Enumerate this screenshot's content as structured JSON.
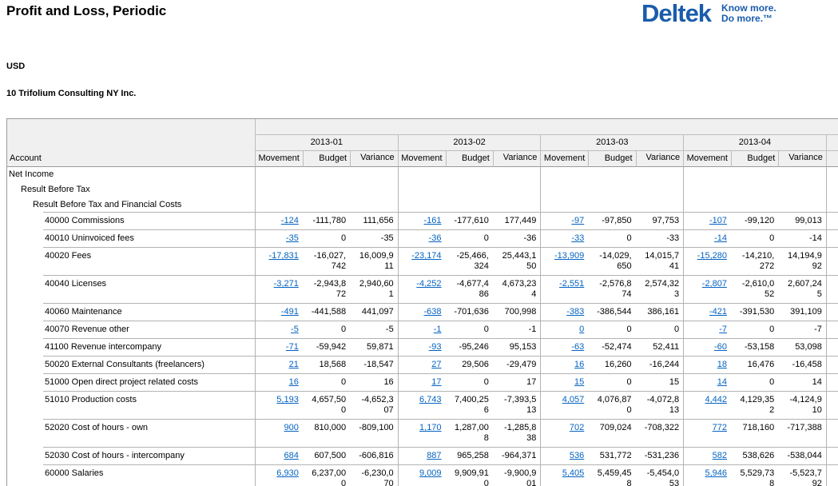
{
  "page": {
    "title": "Profit and Loss, Periodic",
    "currency_label": "USD",
    "company_label": "10 Trifolium Consulting NY Inc."
  },
  "logo": {
    "brand": "Deltek",
    "tagline_line1": "Know more.",
    "tagline_line2": "Do more.™"
  },
  "colors": {
    "brand_blue": "#1a5cab",
    "link_blue": "#0563c1",
    "header_bg": "#f0f0f0",
    "border_gray": "#b3b3b3"
  },
  "table": {
    "account_header": "Account",
    "periods": [
      "2013-01",
      "2013-02",
      "2013-03",
      "2013-04"
    ],
    "sub_headers": [
      "Movement",
      "Budget",
      "Variance"
    ],
    "hierarchy_rows": [
      {
        "label": "Net Income",
        "indent": 0
      },
      {
        "label": "Result Before Tax",
        "indent": 1
      },
      {
        "label": "Result Before Tax and Financial Costs",
        "indent": 2
      }
    ],
    "rows": [
      {
        "account": "40000 Commissions",
        "values": [
          [
            "-124",
            "-111,780",
            "111,656"
          ],
          [
            "-161",
            "-177,610",
            "177,449"
          ],
          [
            "-97",
            "-97,850",
            "97,753"
          ],
          [
            "-107",
            "-99,120",
            "99,013"
          ]
        ]
      },
      {
        "account": "40010 Uninvoiced fees",
        "values": [
          [
            "-35",
            "0",
            "-35"
          ],
          [
            "-36",
            "0",
            "-36"
          ],
          [
            "-33",
            "0",
            "-33"
          ],
          [
            "-14",
            "0",
            "-14"
          ]
        ]
      },
      {
        "account": "40020 Fees",
        "values": [
          [
            "-17,831",
            "-16,027,742",
            "16,009,911"
          ],
          [
            "-23,174",
            "-25,466,324",
            "25,443,150"
          ],
          [
            "-13,909",
            "-14,029,650",
            "14,015,741"
          ],
          [
            "-15,280",
            "-14,210,272",
            "14,194,992"
          ]
        ]
      },
      {
        "account": "40040 Licenses",
        "values": [
          [
            "-3,271",
            "-2,943,872",
            "2,940,601"
          ],
          [
            "-4,252",
            "-4,677,486",
            "4,673,234"
          ],
          [
            "-2,551",
            "-2,576,874",
            "2,574,323"
          ],
          [
            "-2,807",
            "-2,610,052",
            "2,607,245"
          ]
        ]
      },
      {
        "account": "40060 Maintenance",
        "values": [
          [
            "-491",
            "-441,588",
            "441,097"
          ],
          [
            "-638",
            "-701,636",
            "700,998"
          ],
          [
            "-383",
            "-386,544",
            "386,161"
          ],
          [
            "-421",
            "-391,530",
            "391,109"
          ]
        ]
      },
      {
        "account": "40070 Revenue other",
        "values": [
          [
            "-5",
            "0",
            "-5"
          ],
          [
            "-1",
            "0",
            "-1"
          ],
          [
            "0",
            "0",
            "0"
          ],
          [
            "-7",
            "0",
            "-7"
          ]
        ]
      },
      {
        "account": "41100 Revenue intercompany",
        "values": [
          [
            "-71",
            "-59,942",
            "59,871"
          ],
          [
            "-93",
            "-95,246",
            "95,153"
          ],
          [
            "-63",
            "-52,474",
            "52,411"
          ],
          [
            "-60",
            "-53,158",
            "53,098"
          ]
        ]
      },
      {
        "account": "50020 External Consultants (freelancers)",
        "values": [
          [
            "21",
            "18,568",
            "-18,547"
          ],
          [
            "27",
            "29,506",
            "-29,479"
          ],
          [
            "16",
            "16,260",
            "-16,244"
          ],
          [
            "18",
            "16,476",
            "-16,458"
          ]
        ]
      },
      {
        "account": "51000 Open direct project related costs",
        "values": [
          [
            "16",
            "0",
            "16"
          ],
          [
            "17",
            "0",
            "17"
          ],
          [
            "15",
            "0",
            "15"
          ],
          [
            "14",
            "0",
            "14"
          ]
        ]
      },
      {
        "account": "51010 Production costs",
        "values": [
          [
            "5,193",
            "4,657,500",
            "-4,652,307"
          ],
          [
            "6,743",
            "7,400,256",
            "-7,393,513"
          ],
          [
            "4,057",
            "4,076,870",
            "-4,072,813"
          ],
          [
            "4,442",
            "4,129,352",
            "-4,124,910"
          ]
        ]
      },
      {
        "account": "52020 Cost of hours - own",
        "values": [
          [
            "900",
            "810,000",
            "-809,100"
          ],
          [
            "1,170",
            "1,287,008",
            "-1,285,838"
          ],
          [
            "702",
            "709,024",
            "-708,322"
          ],
          [
            "772",
            "718,160",
            "-717,388"
          ]
        ]
      },
      {
        "account": "52030 Cost of hours - intercompany",
        "values": [
          [
            "684",
            "607,500",
            "-606,816"
          ],
          [
            "887",
            "965,258",
            "-964,371"
          ],
          [
            "536",
            "531,772",
            "-531,236"
          ],
          [
            "582",
            "538,626",
            "-538,044"
          ]
        ]
      },
      {
        "account": "60000 Salaries",
        "values": [
          [
            "6,930",
            "6,237,000",
            "-6,230,070"
          ],
          [
            "9,009",
            "9,909,910",
            "-9,900,901"
          ],
          [
            "5,405",
            "5,459,458",
            "-5,454,053"
          ],
          [
            "5,946",
            "5,529,738",
            "-5,523,792"
          ]
        ]
      }
    ]
  }
}
